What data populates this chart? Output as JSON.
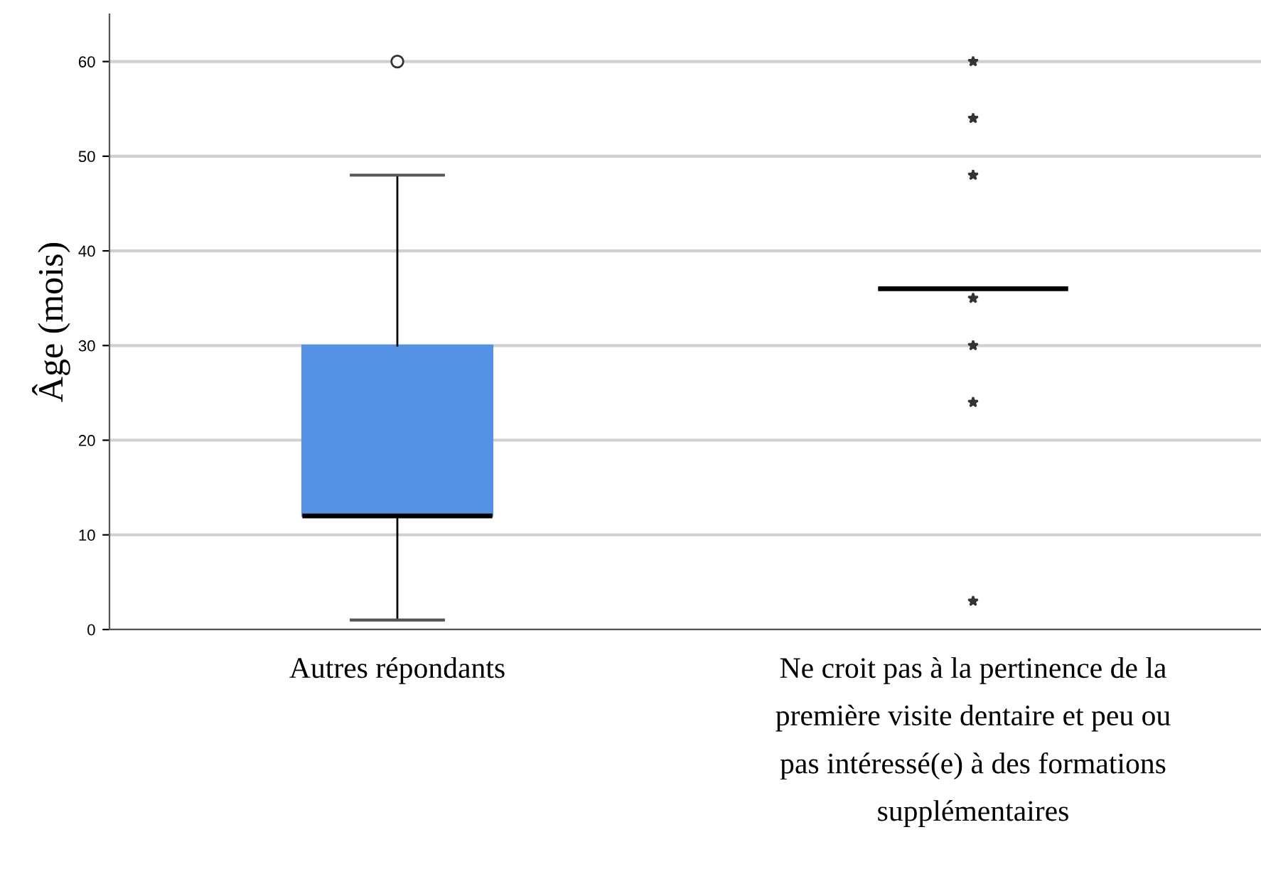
{
  "chart_data": {
    "type": "box",
    "ylabel": "Âge (mois)",
    "categories": [
      "Autres répondants",
      "Ne croit pas à la pertinence de la\npremière visite dentaire et peu ou\npas intéressé(e) à des formations\nsupplémentaires"
    ],
    "series": [
      {
        "color": "#5592e3",
        "marker": "circle",
        "boxes": [
          {
            "low": 1,
            "q1": 12,
            "median": 12,
            "q3": 30,
            "high": 48,
            "outliers": [
              60
            ]
          },
          null
        ]
      },
      {
        "color": "#5592e3",
        "marker": "star",
        "boxes": [
          null,
          {
            "low": 36,
            "q1": 36,
            "median": 36,
            "q3": 36,
            "high": 36,
            "outliers": [
              60,
              54,
              48,
              35,
              30,
              24,
              3
            ]
          }
        ]
      }
    ],
    "ylim": [
      0,
      65
    ],
    "yticks": [
      0,
      10,
      20,
      30,
      40,
      50,
      60
    ],
    "grid": "y"
  }
}
